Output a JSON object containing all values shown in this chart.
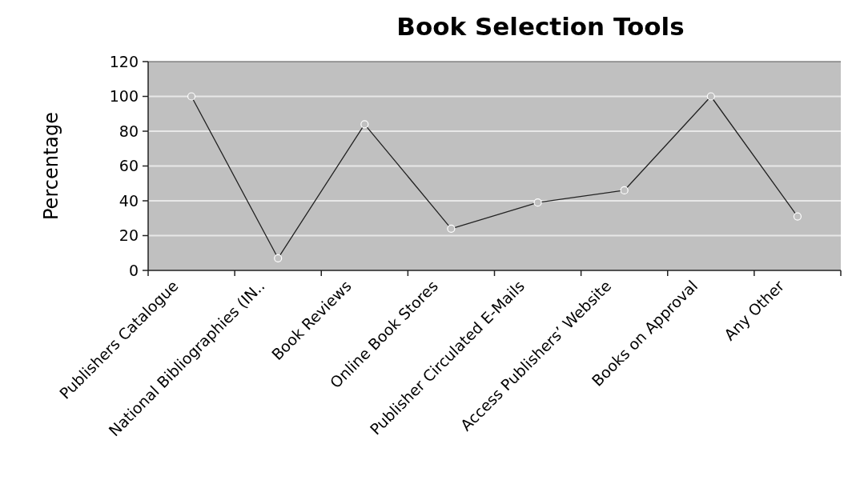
{
  "chart_data": {
    "type": "line",
    "title": "Book Selection Tools",
    "ylabel": "Percentage",
    "categories": [
      "Publishers Catalogue",
      "National Bibliographies (IN..",
      "Book Reviews",
      "Online Book Stores",
      "Publisher Circulated E-Mails",
      "Access Publishers’ Website",
      "Books on Approval",
      "Any Other"
    ],
    "series": [
      {
        "color": "#222222",
        "values": [
          100,
          7,
          84,
          24,
          39,
          46,
          100,
          31
        ]
      }
    ],
    "ylim": [
      0,
      120
    ],
    "yticks": [
      0,
      20,
      40,
      60,
      80,
      100,
      120
    ],
    "grid": "y",
    "marker": "circle",
    "line_style": "solid"
  }
}
